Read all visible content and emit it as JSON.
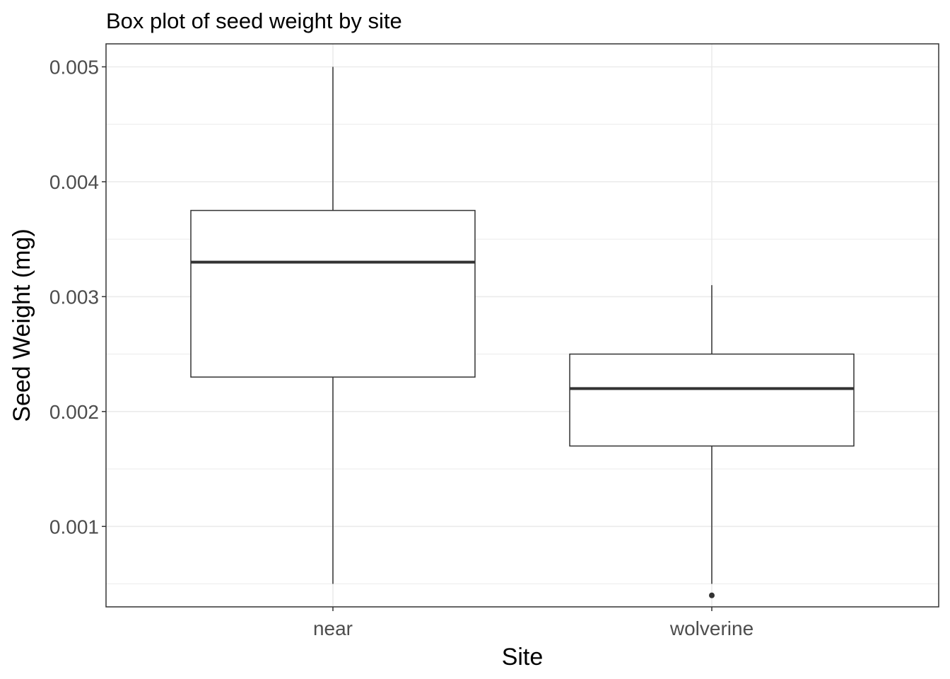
{
  "chart_data": {
    "type": "box",
    "title": "Box plot of seed weight by site",
    "xlabel": "Site",
    "ylabel": "Seed Weight (mg)",
    "ylim": [
      0.0003,
      0.0052
    ],
    "y_ticks": [
      0.001,
      0.002,
      0.003,
      0.004,
      0.005
    ],
    "y_tick_labels": [
      "0.001",
      "0.002",
      "0.003",
      "0.004",
      "0.005"
    ],
    "grid": true,
    "categories": [
      "near",
      "wolverine"
    ],
    "boxes": [
      {
        "category": "near",
        "whisker_low": 0.0005,
        "q1": 0.0023,
        "median": 0.0033,
        "q3": 0.00375,
        "whisker_high": 0.005,
        "outliers": []
      },
      {
        "category": "wolverine",
        "whisker_low": 0.0005,
        "q1": 0.0017,
        "median": 0.0022,
        "q3": 0.0025,
        "whisker_high": 0.0031,
        "outliers": [
          0.0004
        ]
      }
    ],
    "colors": {
      "box_fill": "#ffffff",
      "box_stroke": "#333333",
      "grid_major": "#ebebeb",
      "panel_border": "#333333"
    }
  }
}
